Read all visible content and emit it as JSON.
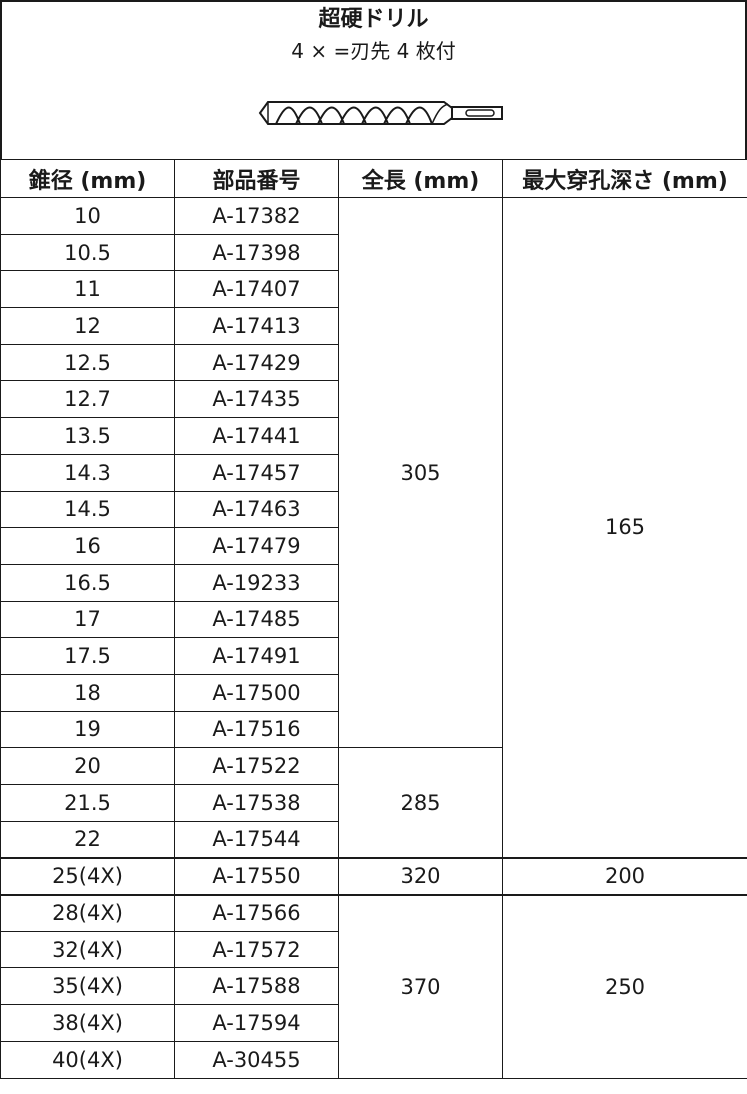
{
  "header": {
    "title": "超硬ドリル",
    "subtitle": "4 × =刃先 4 枚付"
  },
  "table": {
    "columns": [
      "錐径 (mm)",
      "部品番号",
      "全長 (mm)",
      "最大穿孔深さ (mm)"
    ],
    "rows": [
      {
        "diameter": "10",
        "part": "A-17382"
      },
      {
        "diameter": "10.5",
        "part": "A-17398"
      },
      {
        "diameter": "11",
        "part": "A-17407"
      },
      {
        "diameter": "12",
        "part": "A-17413"
      },
      {
        "diameter": "12.5",
        "part": "A-17429"
      },
      {
        "diameter": "12.7",
        "part": "A-17435"
      },
      {
        "diameter": "13.5",
        "part": "A-17441"
      },
      {
        "diameter": "14.3",
        "part": "A-17457"
      },
      {
        "diameter": "14.5",
        "part": "A-17463"
      },
      {
        "diameter": "16",
        "part": "A-17479"
      },
      {
        "diameter": "16.5",
        "part": "A-19233"
      },
      {
        "diameter": "17",
        "part": "A-17485"
      },
      {
        "diameter": "17.5",
        "part": "A-17491"
      },
      {
        "diameter": "18",
        "part": "A-17500"
      },
      {
        "diameter": "19",
        "part": "A-17516"
      },
      {
        "diameter": "20",
        "part": "A-17522"
      },
      {
        "diameter": "21.5",
        "part": "A-17538"
      },
      {
        "diameter": "22",
        "part": "A-17544"
      },
      {
        "diameter": "25(4X)",
        "part": "A-17550"
      },
      {
        "diameter": "28(4X)",
        "part": "A-17566"
      },
      {
        "diameter": "32(4X)",
        "part": "A-17572"
      },
      {
        "diameter": "35(4X)",
        "part": "A-17588"
      },
      {
        "diameter": "38(4X)",
        "part": "A-17594"
      },
      {
        "diameter": "40(4X)",
        "part": "A-30455"
      }
    ],
    "length_groups": [
      "305",
      "285",
      "320",
      "370"
    ],
    "depth_groups": [
      "165",
      "200",
      "250"
    ]
  }
}
